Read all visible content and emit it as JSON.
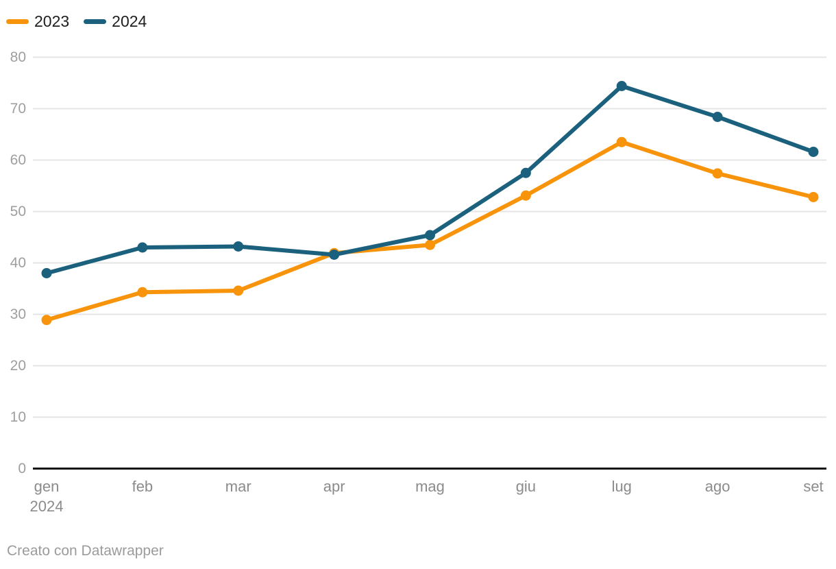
{
  "legend": {
    "position": "top-left",
    "items": [
      {
        "label": "2023",
        "color": "#F8940C"
      },
      {
        "label": "2024",
        "color": "#1B617E"
      }
    ]
  },
  "chart_data": {
    "type": "line",
    "categories": [
      "gen",
      "feb",
      "mar",
      "apr",
      "mag",
      "giu",
      "lug",
      "ago",
      "set"
    ],
    "x_axis_year_label": {
      "index": 0,
      "text": "2024"
    },
    "series": [
      {
        "name": "2023",
        "color": "#F8940C",
        "values": [
          28.9,
          34.3,
          34.6,
          41.9,
          43.5,
          53.1,
          63.5,
          57.4,
          52.8
        ]
      },
      {
        "name": "2024",
        "color": "#1B617E",
        "values": [
          38.0,
          43.0,
          43.2,
          41.6,
          45.4,
          57.5,
          74.4,
          68.4,
          61.6
        ]
      }
    ],
    "title": "",
    "xlabel": "",
    "ylabel": "",
    "ylim": [
      0,
      80
    ],
    "yticks": [
      0,
      10,
      20,
      30,
      40,
      50,
      60,
      70,
      80
    ],
    "grid": "horizontal",
    "legend_position": "top-left"
  },
  "styles": {
    "gridline_color": "#e4e4e4",
    "baseline_color": "#161616",
    "y_tick_label_color": "#9e9e9e",
    "x_tick_label_color": "#8b8b8b",
    "background": "#ffffff"
  },
  "footer": {
    "credit": "Creato con Datawrapper"
  }
}
